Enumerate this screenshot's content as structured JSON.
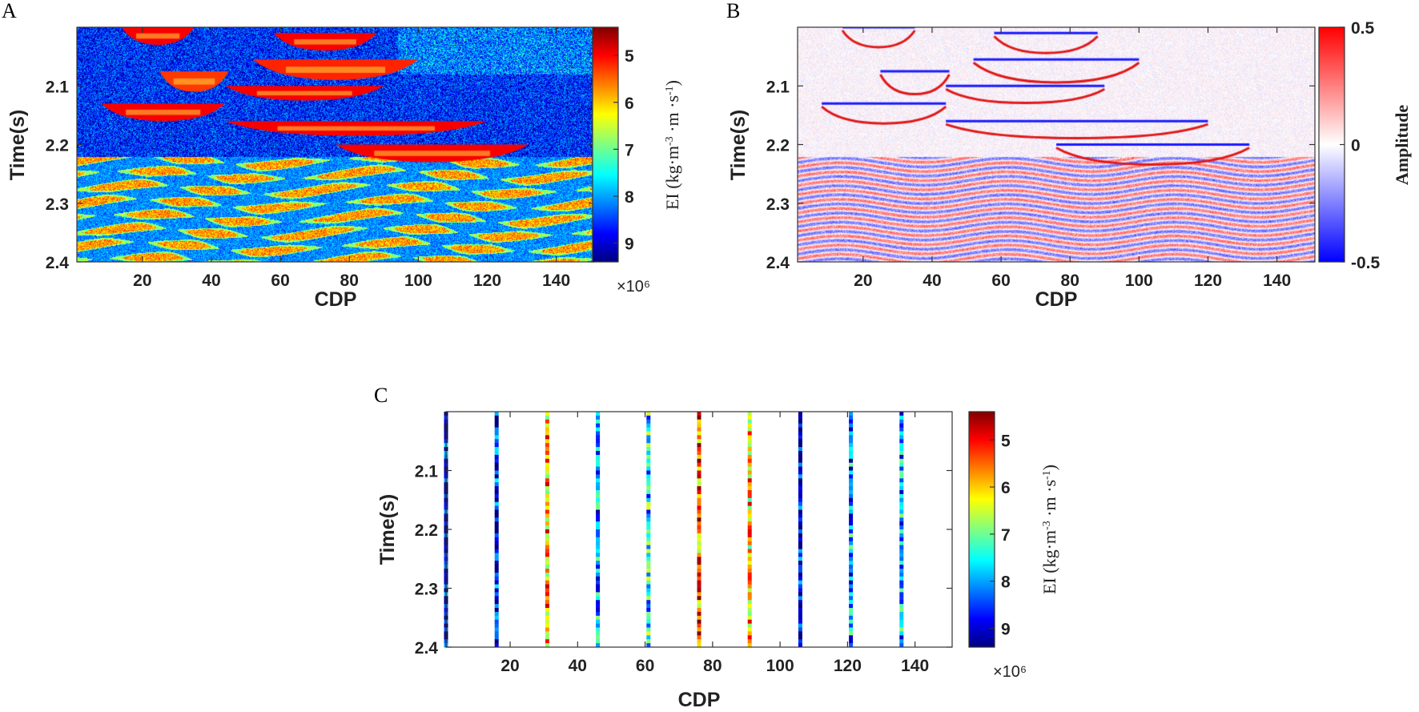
{
  "panels": [
    {
      "id": "A",
      "label": "A",
      "xlabel": "CDP",
      "ylabel": "Time(s)",
      "cb_label_html": "EI (kg·m<tspan baseline-shift='super' font-size='14'>-3</tspan> ·m ·s<tspan baseline-shift='super' font-size='14'>-1</tspan>)",
      "cb_multiplier": "×10⁶"
    },
    {
      "id": "B",
      "label": "B",
      "xlabel": "CDP",
      "ylabel": "Time(s)",
      "cb_label": "Amplitude"
    },
    {
      "id": "C",
      "label": "C",
      "xlabel": "CDP",
      "ylabel": "Time(s)",
      "cb_label_html": "EI (kg·m<tspan baseline-shift='super' font-size='14'>-3</tspan> ·m ·s<tspan baseline-shift='super' font-size='14'>-1</tspan>)",
      "cb_multiplier": "×10⁶"
    }
  ],
  "chart_data": [
    {
      "type": "heatmap",
      "panel": "A",
      "xlabel": "CDP",
      "ylabel": "Time(s)",
      "xlim": [
        1,
        151
      ],
      "ylim": [
        2.0,
        2.4
      ],
      "xticks": [
        20,
        40,
        60,
        80,
        100,
        120,
        140
      ],
      "yticks": [
        2.1,
        2.2,
        2.3,
        2.4
      ],
      "colormap": "jet",
      "colorbar": {
        "label": "EI (kg·m-3 ·m ·s-1)",
        "range": [
          4.4,
          9.4
        ],
        "ticks": [
          5,
          6,
          7,
          8,
          9
        ],
        "reversed": true,
        "multiplier": "×10^6"
      },
      "background_value": 8.6,
      "bodies": [
        {
          "cdp": [
            14,
            35
          ],
          "time": [
            2.0,
            2.03
          ],
          "value": 5.0
        },
        {
          "cdp": [
            58,
            88
          ],
          "time": [
            2.01,
            2.04
          ],
          "value": 5.0
        },
        {
          "cdp": [
            25,
            45
          ],
          "time": [
            2.075,
            2.11
          ],
          "value": 5.3
        },
        {
          "cdp": [
            52,
            100
          ],
          "time": [
            2.055,
            2.09
          ],
          "value": 5.2
        },
        {
          "cdp": [
            44,
            90
          ],
          "time": [
            2.1,
            2.125
          ],
          "value": 5.0
        },
        {
          "cdp": [
            8,
            44
          ],
          "time": [
            2.13,
            2.16
          ],
          "value": 5.0
        },
        {
          "cdp": [
            44,
            120
          ],
          "time": [
            2.16,
            2.185
          ],
          "value": 5.0
        },
        {
          "cdp": [
            76,
            132
          ],
          "time": [
            2.2,
            2.23
          ],
          "value": 5.0
        }
      ]
    },
    {
      "type": "heatmap",
      "panel": "B",
      "xlabel": "CDP",
      "ylabel": "Time(s)",
      "xlim": [
        1,
        151
      ],
      "ylim": [
        2.0,
        2.4
      ],
      "xticks": [
        20,
        40,
        60,
        80,
        100,
        120,
        140
      ],
      "yticks": [
        2.1,
        2.2,
        2.3,
        2.4
      ],
      "colormap": "blue-white-red",
      "colorbar": {
        "label": "Amplitude",
        "range": [
          -0.5,
          0.5
        ],
        "ticks": [
          0.5,
          0,
          -0.5
        ]
      }
    },
    {
      "type": "heatmap",
      "panel": "C",
      "xlabel": "CDP",
      "ylabel": "Time(s)",
      "xlim": [
        1,
        151
      ],
      "ylim": [
        2.0,
        2.4
      ],
      "xticks": [
        20,
        40,
        60,
        80,
        100,
        120,
        140
      ],
      "yticks": [
        2.1,
        2.2,
        2.3,
        2.4
      ],
      "colormap": "jet",
      "colorbar": {
        "label": "EI (kg·m-3 ·m ·s-1)",
        "range": [
          4.4,
          9.4
        ],
        "ticks": [
          5,
          6,
          7,
          8,
          9
        ],
        "reversed": true,
        "multiplier": "×10^6"
      },
      "well_traces_cdp": [
        1,
        16,
        31,
        46,
        61,
        76,
        91,
        106,
        121,
        136
      ],
      "well_mean_value": [
        8.8,
        8.7,
        5.8,
        8.0,
        7.6,
        5.5,
        6.0,
        8.8,
        8.1,
        7.9
      ]
    }
  ]
}
